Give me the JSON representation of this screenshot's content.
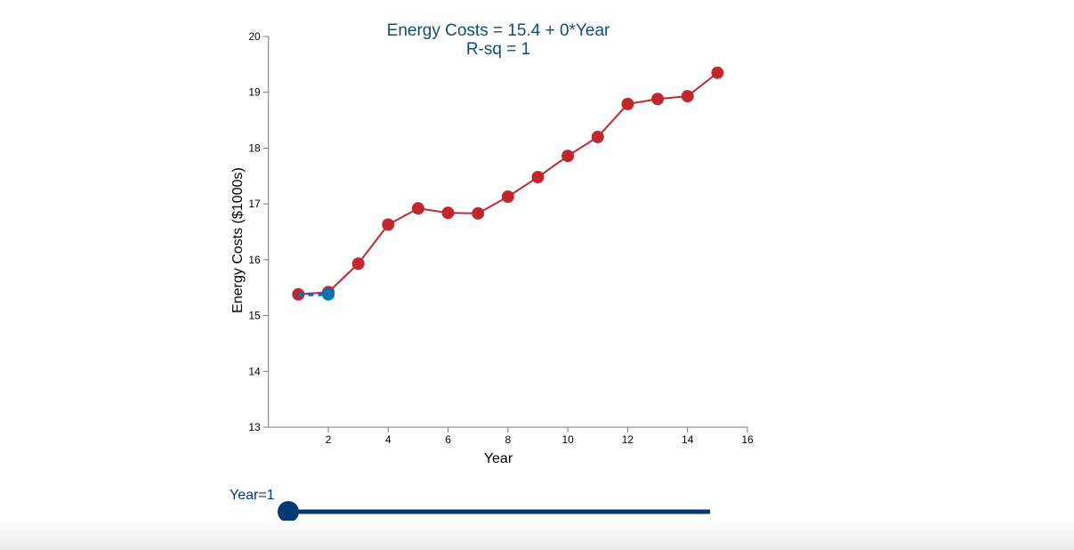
{
  "chart_data": {
    "type": "line",
    "title": "Energy Costs = 15.4 + 0*Year",
    "subtitle": "R-sq = 1",
    "xlabel": "Year",
    "ylabel": "Energy Costs ($1000s)",
    "xlim": [
      0,
      16
    ],
    "ylim": [
      13,
      20
    ],
    "xticks": [
      2,
      4,
      6,
      8,
      10,
      12,
      14,
      16
    ],
    "yticks": [
      13,
      14,
      15,
      16,
      17,
      18,
      19,
      20
    ],
    "grid": false,
    "series": [
      {
        "x": [
          1,
          2,
          3,
          4,
          5,
          6,
          7,
          8,
          9,
          10,
          11,
          12,
          13,
          14,
          15
        ],
        "values": [
          15.38,
          15.42,
          15.93,
          16.63,
          16.92,
          16.84,
          16.83,
          17.13,
          17.48,
          17.86,
          18.2,
          18.79,
          18.88,
          18.93,
          19.35
        ],
        "color": "#c1272d"
      }
    ],
    "fit_line": {
      "x": [
        1,
        2
      ],
      "values": [
        15.38,
        15.38
      ],
      "color": "#0072b2",
      "style": "dashed"
    },
    "fit_point": {
      "x": 2,
      "y": 15.38,
      "color": "#0072b2"
    }
  },
  "slider": {
    "label": "Year=1",
    "value": 1,
    "min": 1,
    "max": 15,
    "ticks": [
      "5",
      "10",
      "15"
    ],
    "color": "#003a70"
  },
  "colors": {
    "title": "#0b4f7c"
  }
}
